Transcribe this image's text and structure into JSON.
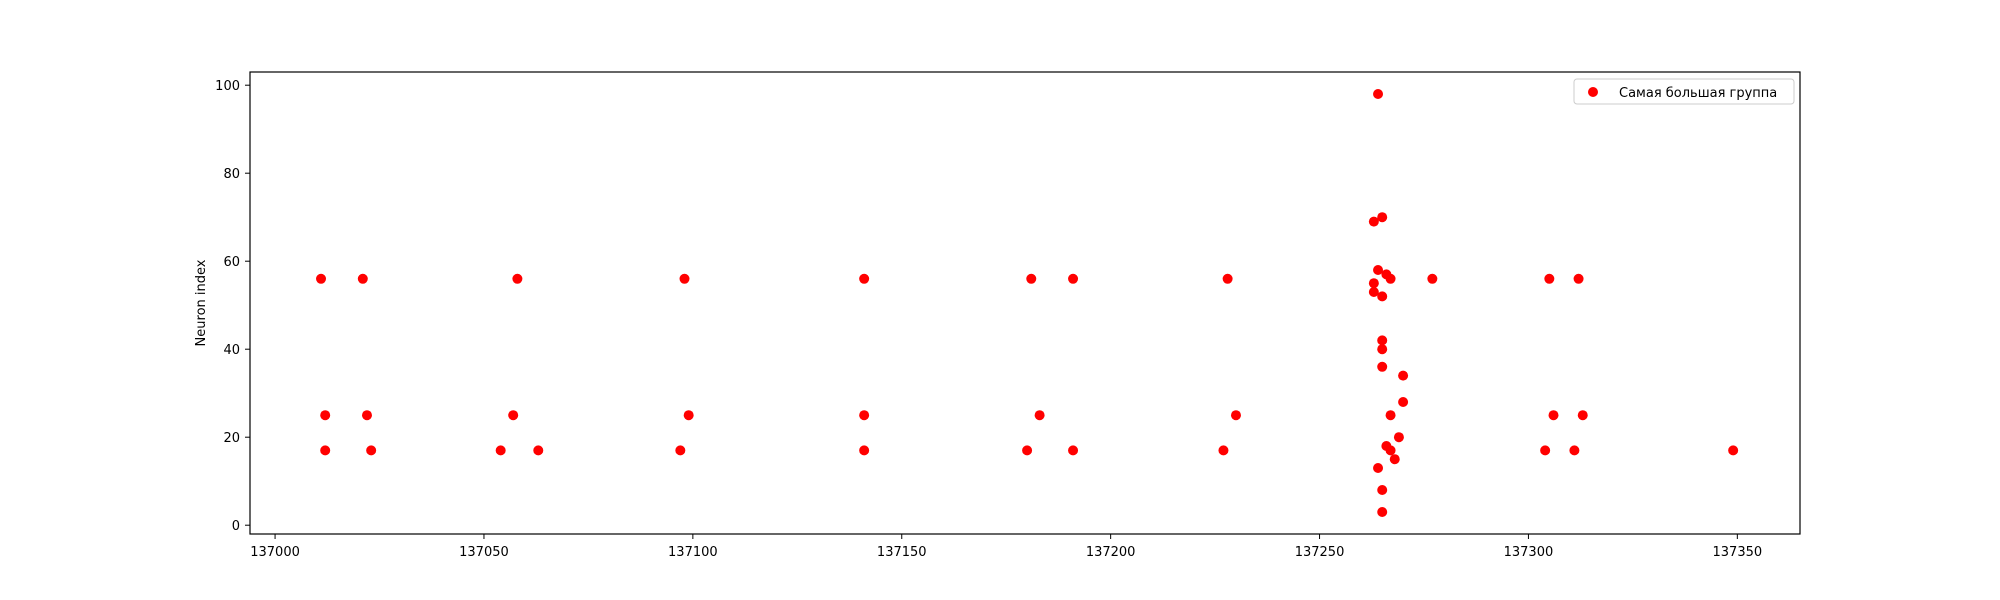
{
  "chart_data": {
    "type": "scatter",
    "title": "",
    "xlabel": "",
    "ylabel": "Neuron index",
    "xlim": [
      136994,
      137365
    ],
    "ylim": [
      -2,
      103
    ],
    "x_ticks": [
      137000,
      137050,
      137100,
      137150,
      137200,
      137250,
      137300,
      137350
    ],
    "y_ticks": [
      0,
      20,
      40,
      60,
      80,
      100
    ],
    "grid": false,
    "legend_position": "top-right",
    "series": [
      {
        "name": "Самая большая группа",
        "color": "#ff0000",
        "points": [
          [
            137011,
            56
          ],
          [
            137012,
            17
          ],
          [
            137012,
            25
          ],
          [
            137021,
            56
          ],
          [
            137022,
            25
          ],
          [
            137023,
            17
          ],
          [
            137054,
            17
          ],
          [
            137057,
            25
          ],
          [
            137058,
            56
          ],
          [
            137063,
            17
          ],
          [
            137097,
            17
          ],
          [
            137098,
            56
          ],
          [
            137099,
            25
          ],
          [
            137141,
            56
          ],
          [
            137141,
            25
          ],
          [
            137141,
            17
          ],
          [
            137180,
            17
          ],
          [
            137181,
            56
          ],
          [
            137183,
            25
          ],
          [
            137191,
            56
          ],
          [
            137191,
            17
          ],
          [
            137227,
            17
          ],
          [
            137228,
            56
          ],
          [
            137230,
            25
          ],
          [
            137263,
            69
          ],
          [
            137263,
            53
          ],
          [
            137263,
            55
          ],
          [
            137264,
            98
          ],
          [
            137264,
            58
          ],
          [
            137264,
            13
          ],
          [
            137265,
            70
          ],
          [
            137265,
            52
          ],
          [
            137265,
            42
          ],
          [
            137265,
            40
          ],
          [
            137265,
            36
          ],
          [
            137265,
            8
          ],
          [
            137265,
            3
          ],
          [
            137266,
            57
          ],
          [
            137266,
            18
          ],
          [
            137267,
            56
          ],
          [
            137267,
            25
          ],
          [
            137267,
            17
          ],
          [
            137268,
            15
          ],
          [
            137269,
            20
          ],
          [
            137270,
            28
          ],
          [
            137270,
            34
          ],
          [
            137277,
            56
          ],
          [
            137304,
            17
          ],
          [
            137305,
            56
          ],
          [
            137306,
            25
          ],
          [
            137311,
            17
          ],
          [
            137312,
            56
          ],
          [
            137313,
            25
          ],
          [
            137349,
            17
          ]
        ]
      }
    ]
  }
}
